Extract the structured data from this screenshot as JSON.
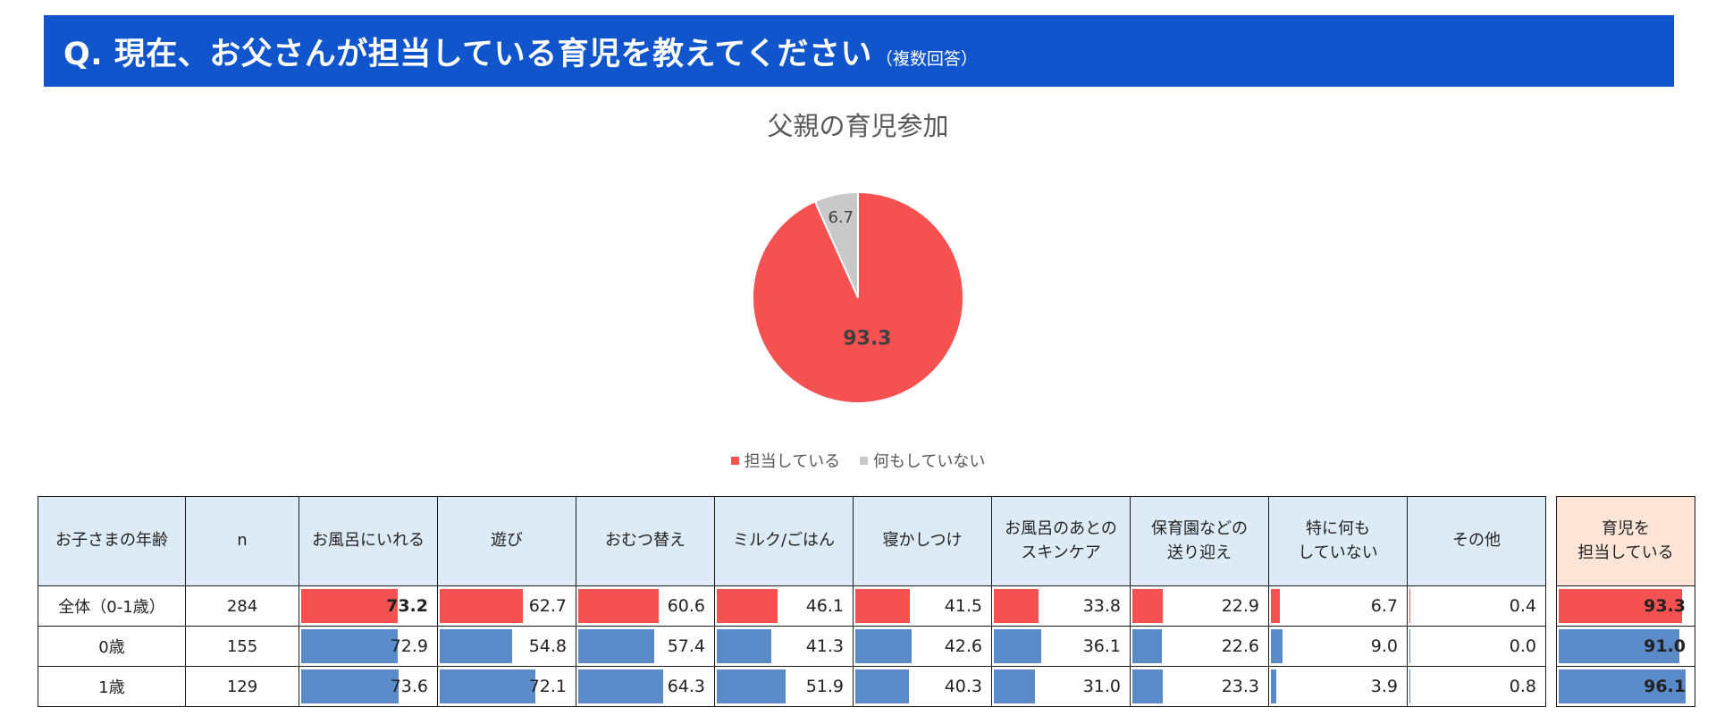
{
  "header": {
    "title": "Q. 現在、お父さんが担当している育児を教えてください",
    "subtitle": "（複数回答）"
  },
  "colors": {
    "red": "#f55151",
    "blue": "#5b8ac9",
    "gray": "#c9c9c9",
    "header": "#1155cc"
  },
  "chart_data": [
    {
      "type": "pie",
      "title": "父親の育児参加",
      "slices": [
        {
          "label": "担当している",
          "value": 93.3,
          "color": "#f55151"
        },
        {
          "label": "何もしていない",
          "value": 6.7,
          "color": "#c9c9c9"
        }
      ],
      "legend": "bottom"
    },
    {
      "type": "table",
      "columns": [
        "お子さまの年齢",
        "n",
        "お風呂にいれる",
        "遊び",
        "おむつ替え",
        "ミルク/ごはん",
        "寝かしつけ",
        "お風呂のあとの\nスキンケア",
        "保育園などの\n送り迎え",
        "特に何も\nしていない",
        "その他",
        "育児を\n担当している"
      ],
      "rows": [
        {
          "label": "全体（0-1歳）",
          "n": "284",
          "values": [
            73.2,
            62.7,
            60.6,
            46.1,
            41.5,
            33.8,
            22.9,
            6.7,
            0.4
          ],
          "total": 93.3,
          "color": "#f55151"
        },
        {
          "label": "0歳",
          "n": "155",
          "values": [
            72.9,
            54.8,
            57.4,
            41.3,
            42.6,
            36.1,
            22.6,
            9.0,
            0.0
          ],
          "total": 91.0,
          "color": "#5b8ac9"
        },
        {
          "label": "1歳",
          "n": "129",
          "values": [
            73.6,
            72.1,
            64.3,
            51.9,
            40.3,
            31.0,
            23.3,
            3.9,
            0.8
          ],
          "total": 96.1,
          "color": "#5b8ac9"
        }
      ]
    }
  ]
}
